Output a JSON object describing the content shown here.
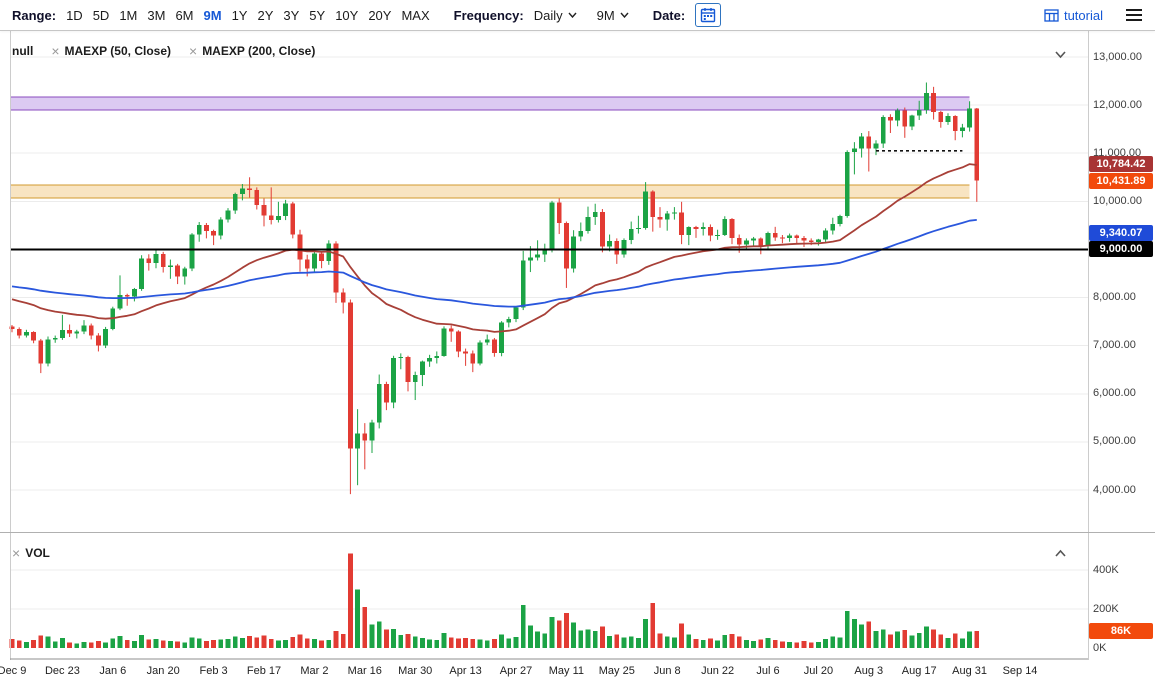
{
  "toolbar": {
    "range_label": "Range:",
    "range_options": [
      "1D",
      "5D",
      "1M",
      "3M",
      "6M",
      "9M",
      "1Y",
      "2Y",
      "3Y",
      "5Y",
      "10Y",
      "20Y",
      "MAX"
    ],
    "active_range": "9M",
    "frequency_label": "Frequency:",
    "frequency_value": "Daily",
    "period_value": "9M",
    "date_label": "Date:",
    "tutorial_label": "tutorial",
    "accent_color": "#1558d6"
  },
  "legend": {
    "main_items": [
      {
        "label": "null",
        "closable": false
      },
      {
        "label": "MAEXP (50, Close)",
        "closable": true
      },
      {
        "label": "MAEXP (200, Close)",
        "closable": true
      }
    ],
    "volume_items": [
      {
        "label": "VOL",
        "closable": true
      }
    ]
  },
  "price_axis": {
    "ticks": [
      {
        "value": 13000,
        "label": "13,000.00"
      },
      {
        "value": 12000,
        "label": "12,000.00"
      },
      {
        "value": 11000,
        "label": "11,000.00"
      },
      {
        "value": 10000,
        "label": "10,000.00"
      },
      {
        "value": 9000,
        "label": "9,000.00"
      },
      {
        "value": 8000,
        "label": "8,000.00"
      },
      {
        "value": 7000,
        "label": "7,000.00"
      },
      {
        "value": 6000,
        "label": "6,000.00"
      },
      {
        "value": 5000,
        "label": "5,000.00"
      },
      {
        "value": 4000,
        "label": "4,000.00"
      }
    ],
    "badges": [
      {
        "name": "ema50-value",
        "label": "10,784.42",
        "value": 10784.42,
        "color": "#a83434"
      },
      {
        "name": "last-price",
        "label": "10,431.89",
        "value": 10431.89,
        "color": "#f24a0c"
      },
      {
        "name": "ema200-value",
        "label": "9,340.07",
        "value": 9340.07,
        "color": "#1f4bd8"
      },
      {
        "name": "hline-value",
        "label": "9,000.00",
        "value": 9000,
        "color": "#000000"
      }
    ]
  },
  "volume_axis": {
    "ticks": [
      {
        "value": 400,
        "label": "400K"
      },
      {
        "value": 200,
        "label": "200K"
      },
      {
        "value": 0,
        "label": "0K"
      }
    ],
    "badge": {
      "name": "last-volume",
      "label": "86K",
      "value": 86,
      "color": "#f24a0c"
    }
  },
  "x_axis": {
    "ticks": [
      {
        "day": 0,
        "label": "Dec 9"
      },
      {
        "day": 14,
        "label": "Dec 23"
      },
      {
        "day": 28,
        "label": "Jan 6"
      },
      {
        "day": 42,
        "label": "Jan 20"
      },
      {
        "day": 56,
        "label": "Feb 3"
      },
      {
        "day": 70,
        "label": "Feb 17"
      },
      {
        "day": 84,
        "label": "Mar 2"
      },
      {
        "day": 98,
        "label": "Mar 16"
      },
      {
        "day": 112,
        "label": "Mar 30"
      },
      {
        "day": 126,
        "label": "Apr 13"
      },
      {
        "day": 140,
        "label": "Apr 27"
      },
      {
        "day": 154,
        "label": "May 11"
      },
      {
        "day": 168,
        "label": "May 25"
      },
      {
        "day": 182,
        "label": "Jun 8"
      },
      {
        "day": 196,
        "label": "Jun 22"
      },
      {
        "day": 210,
        "label": "Jul 6"
      },
      {
        "day": 224,
        "label": "Jul 20"
      },
      {
        "day": 238,
        "label": "Aug 3"
      },
      {
        "day": 252,
        "label": "Aug 17"
      },
      {
        "day": 266,
        "label": "Aug 31"
      },
      {
        "day": 280,
        "label": "Sep 14"
      }
    ]
  },
  "chart_data": {
    "type": "candlestick",
    "frequency": "Daily",
    "range": "9M",
    "ylim": [
      4000,
      13000
    ],
    "volume_ylim_thousands": [
      0,
      400
    ],
    "columns": [
      "day_offset_from_Dec9",
      "open",
      "high",
      "low",
      "close",
      "volume_thousands"
    ],
    "bars": [
      [
        0,
        7400,
        7430,
        7280,
        7350,
        45
      ],
      [
        2,
        7350,
        7380,
        7150,
        7210,
        38
      ],
      [
        4,
        7210,
        7330,
        7170,
        7280,
        30
      ],
      [
        6,
        7280,
        7300,
        7050,
        7110,
        42
      ],
      [
        8,
        7110,
        7140,
        6430,
        6630,
        65
      ],
      [
        10,
        6630,
        7190,
        6570,
        7130,
        58
      ],
      [
        12,
        7130,
        7210,
        7060,
        7160,
        33
      ],
      [
        14,
        7160,
        7640,
        7120,
        7330,
        52
      ],
      [
        16,
        7330,
        7440,
        7180,
        7250,
        28
      ],
      [
        18,
        7250,
        7330,
        7150,
        7290,
        24
      ],
      [
        20,
        7290,
        7530,
        7240,
        7420,
        31
      ],
      [
        22,
        7420,
        7460,
        7130,
        7210,
        27
      ],
      [
        24,
        7210,
        7260,
        6880,
        7000,
        35
      ],
      [
        26,
        7000,
        7390,
        6950,
        7350,
        29
      ],
      [
        28,
        7350,
        7810,
        7320,
        7770,
        48
      ],
      [
        30,
        7770,
        8460,
        7740,
        8050,
        62
      ],
      [
        32,
        8050,
        8080,
        7830,
        8020,
        41
      ],
      [
        34,
        8020,
        8200,
        7920,
        8180,
        37
      ],
      [
        36,
        8180,
        8880,
        8140,
        8810,
        66
      ],
      [
        38,
        8810,
        8900,
        8560,
        8720,
        44
      ],
      [
        40,
        8720,
        9010,
        8610,
        8910,
        47
      ],
      [
        42,
        8910,
        8950,
        8520,
        8630,
        39
      ],
      [
        44,
        8630,
        8790,
        8390,
        8670,
        35
      ],
      [
        46,
        8670,
        8700,
        8280,
        8440,
        33
      ],
      [
        48,
        8440,
        8640,
        8270,
        8600,
        28
      ],
      [
        50,
        8600,
        9340,
        8550,
        9310,
        55
      ],
      [
        52,
        9310,
        9570,
        9160,
        9510,
        49
      ],
      [
        54,
        9510,
        9550,
        9230,
        9380,
        36
      ],
      [
        56,
        9380,
        9410,
        9090,
        9290,
        40
      ],
      [
        58,
        9290,
        9670,
        9210,
        9620,
        43
      ],
      [
        60,
        9620,
        9860,
        9560,
        9810,
        45
      ],
      [
        62,
        9810,
        10180,
        9740,
        10150,
        58
      ],
      [
        64,
        10150,
        10360,
        10020,
        10270,
        52
      ],
      [
        66,
        10270,
        10500,
        10080,
        10240,
        61
      ],
      [
        68,
        10240,
        10290,
        9830,
        9920,
        54
      ],
      [
        70,
        9920,
        10060,
        9480,
        9710,
        63
      ],
      [
        72,
        9710,
        10290,
        9520,
        9610,
        47
      ],
      [
        74,
        9610,
        9990,
        9560,
        9690,
        38
      ],
      [
        76,
        9690,
        10030,
        9610,
        9960,
        41
      ],
      [
        78,
        9960,
        9990,
        9230,
        9310,
        57
      ],
      [
        80,
        9310,
        9410,
        8540,
        8790,
        68
      ],
      [
        82,
        8790,
        8890,
        8440,
        8600,
        49
      ],
      [
        84,
        8600,
        8970,
        8510,
        8920,
        45
      ],
      [
        86,
        8920,
        8950,
        8610,
        8760,
        39
      ],
      [
        88,
        8760,
        9190,
        8680,
        9120,
        42
      ],
      [
        90,
        9120,
        9170,
        7890,
        8100,
        88
      ],
      [
        92,
        8100,
        8190,
        7670,
        7900,
        72
      ],
      [
        94,
        7900,
        7960,
        3915,
        4860,
        485
      ],
      [
        96,
        4860,
        5680,
        4100,
        5170,
        300
      ],
      [
        98,
        5170,
        5390,
        4430,
        5030,
        210
      ],
      [
        100,
        5030,
        5460,
        4770,
        5400,
        120
      ],
      [
        102,
        5400,
        6400,
        5280,
        6200,
        135
      ],
      [
        104,
        6200,
        6250,
        5660,
        5820,
        95
      ],
      [
        106,
        5820,
        6790,
        5700,
        6740,
        98
      ],
      [
        108,
        6740,
        6840,
        6510,
        6760,
        66
      ],
      [
        110,
        6760,
        6790,
        6050,
        6240,
        72
      ],
      [
        112,
        6240,
        6460,
        5870,
        6390,
        58
      ],
      [
        114,
        6390,
        6690,
        6160,
        6670,
        52
      ],
      [
        116,
        6670,
        6810,
        6560,
        6740,
        44
      ],
      [
        118,
        6740,
        6880,
        6630,
        6790,
        40
      ],
      [
        120,
        6790,
        7400,
        6770,
        7360,
        78
      ],
      [
        122,
        7360,
        7420,
        7080,
        7290,
        55
      ],
      [
        124,
        7290,
        7320,
        6760,
        6880,
        49
      ],
      [
        126,
        6880,
        6940,
        6580,
        6840,
        51
      ],
      [
        128,
        6840,
        6900,
        6450,
        6630,
        46
      ],
      [
        130,
        6630,
        7110,
        6590,
        7070,
        44
      ],
      [
        132,
        7070,
        7230,
        7010,
        7130,
        38
      ],
      [
        134,
        7130,
        7160,
        6770,
        6850,
        47
      ],
      [
        136,
        6850,
        7510,
        6780,
        7480,
        69
      ],
      [
        138,
        7480,
        7600,
        7380,
        7550,
        48
      ],
      [
        140,
        7550,
        7810,
        7490,
        7790,
        56
      ],
      [
        142,
        7790,
        8970,
        7740,
        8770,
        220
      ],
      [
        144,
        8770,
        9070,
        8530,
        8830,
        115
      ],
      [
        146,
        8830,
        9190,
        8770,
        8900,
        85
      ],
      [
        148,
        8900,
        9120,
        8740,
        9020,
        74
      ],
      [
        150,
        9020,
        10010,
        8940,
        9980,
        160
      ],
      [
        152,
        9980,
        10060,
        9320,
        9550,
        140
      ],
      [
        154,
        9550,
        9580,
        8200,
        8600,
        180
      ],
      [
        156,
        8600,
        9400,
        8520,
        9270,
        130
      ],
      [
        158,
        9270,
        9560,
        9170,
        9380,
        90
      ],
      [
        160,
        9380,
        9890,
        9330,
        9670,
        95
      ],
      [
        162,
        9670,
        9950,
        9510,
        9780,
        88
      ],
      [
        164,
        9780,
        9840,
        8940,
        9060,
        110
      ],
      [
        166,
        9060,
        9310,
        8960,
        9180,
        62
      ],
      [
        168,
        9180,
        9230,
        8700,
        8900,
        70
      ],
      [
        170,
        8900,
        9230,
        8830,
        9200,
        55
      ],
      [
        172,
        9200,
        9580,
        9110,
        9430,
        60
      ],
      [
        174,
        9430,
        9700,
        9330,
        9450,
        52
      ],
      [
        176,
        9450,
        10400,
        9410,
        10200,
        150
      ],
      [
        178,
        10200,
        10230,
        9370,
        9670,
        230
      ],
      [
        180,
        9670,
        9880,
        9450,
        9620,
        75
      ],
      [
        182,
        9620,
        9800,
        9390,
        9750,
        58
      ],
      [
        184,
        9750,
        9880,
        9620,
        9770,
        54
      ],
      [
        186,
        9770,
        9990,
        9110,
        9300,
        125
      ],
      [
        188,
        9300,
        9480,
        9090,
        9470,
        68
      ],
      [
        190,
        9470,
        9490,
        9240,
        9430,
        45
      ],
      [
        192,
        9430,
        9560,
        9290,
        9470,
        41
      ],
      [
        194,
        9470,
        9520,
        9170,
        9290,
        48
      ],
      [
        196,
        9290,
        9410,
        9200,
        9300,
        38
      ],
      [
        198,
        9300,
        9690,
        9280,
        9630,
        66
      ],
      [
        200,
        9630,
        9650,
        9110,
        9240,
        72
      ],
      [
        202,
        9240,
        9310,
        8930,
        9100,
        58
      ],
      [
        204,
        9100,
        9230,
        9010,
        9190,
        42
      ],
      [
        206,
        9190,
        9260,
        9070,
        9230,
        36
      ],
      [
        208,
        9230,
        9250,
        8900,
        9070,
        44
      ],
      [
        210,
        9070,
        9370,
        9020,
        9340,
        52
      ],
      [
        212,
        9340,
        9470,
        9180,
        9250,
        40
      ],
      [
        214,
        9250,
        9300,
        9130,
        9240,
        33
      ],
      [
        216,
        9240,
        9330,
        9160,
        9290,
        31
      ],
      [
        218,
        9290,
        9310,
        9110,
        9240,
        29
      ],
      [
        220,
        9240,
        9280,
        9050,
        9190,
        35
      ],
      [
        222,
        9190,
        9230,
        9090,
        9150,
        27
      ],
      [
        224,
        9150,
        9220,
        9080,
        9210,
        30
      ],
      [
        226,
        9210,
        9440,
        9140,
        9390,
        46
      ],
      [
        228,
        9390,
        9660,
        9310,
        9530,
        58
      ],
      [
        230,
        9530,
        9720,
        9480,
        9700,
        54
      ],
      [
        232,
        9700,
        11060,
        9660,
        11030,
        190
      ],
      [
        234,
        11030,
        11230,
        10560,
        11100,
        150
      ],
      [
        236,
        11100,
        11420,
        10910,
        11350,
        120
      ],
      [
        238,
        11350,
        11460,
        10620,
        11100,
        135
      ],
      [
        240,
        11100,
        11270,
        10960,
        11200,
        88
      ],
      [
        242,
        11200,
        11790,
        11110,
        11750,
        95
      ],
      [
        244,
        11750,
        11810,
        11420,
        11680,
        70
      ],
      [
        246,
        11680,
        11930,
        11560,
        11890,
        85
      ],
      [
        248,
        11890,
        11950,
        11320,
        11560,
        92
      ],
      [
        250,
        11560,
        11800,
        11480,
        11780,
        64
      ],
      [
        252,
        11780,
        12090,
        11690,
        11900,
        78
      ],
      [
        254,
        11900,
        12470,
        11820,
        12250,
        110
      ],
      [
        256,
        12250,
        12380,
        11700,
        11860,
        95
      ],
      [
        258,
        11860,
        11880,
        11530,
        11650,
        68
      ],
      [
        260,
        11650,
        11830,
        11590,
        11770,
        52
      ],
      [
        262,
        11770,
        11790,
        11270,
        11460,
        74
      ],
      [
        264,
        11460,
        11610,
        11330,
        11530,
        48
      ],
      [
        266,
        11530,
        12080,
        11450,
        11930,
        85
      ],
      [
        268,
        11930,
        11940,
        9990,
        10432,
        86
      ]
    ],
    "overlays": {
      "bands": [
        {
          "name": "resistance-zone",
          "from": 11900,
          "to": 12170,
          "fill": "#dccaf2",
          "edge": "#8a4bbf",
          "end_day": 266
        },
        {
          "name": "support-zone",
          "from": 10070,
          "to": 10340,
          "fill": "#f8e4c2",
          "edge": "#d29a2f",
          "end_day": 266
        }
      ],
      "hline": {
        "value": 9000,
        "color": "#000000"
      },
      "dotted_segment": {
        "value": 11050,
        "from_day": 240,
        "to_day": 264,
        "color": "#111111"
      },
      "emas": [
        {
          "name": "MAEXP (50, Close)",
          "span_bars": 35,
          "seed": 8000,
          "color": "#a84038",
          "last_value": 10784.42
        },
        {
          "name": "MAEXP (200, Close)",
          "span_bars": 100,
          "seed": 8250,
          "color": "#2a57dd",
          "last_value": 9340.07
        }
      ]
    },
    "colors": {
      "up": "#1ba345",
      "down": "#e23b33",
      "grid": "#ececec"
    }
  }
}
